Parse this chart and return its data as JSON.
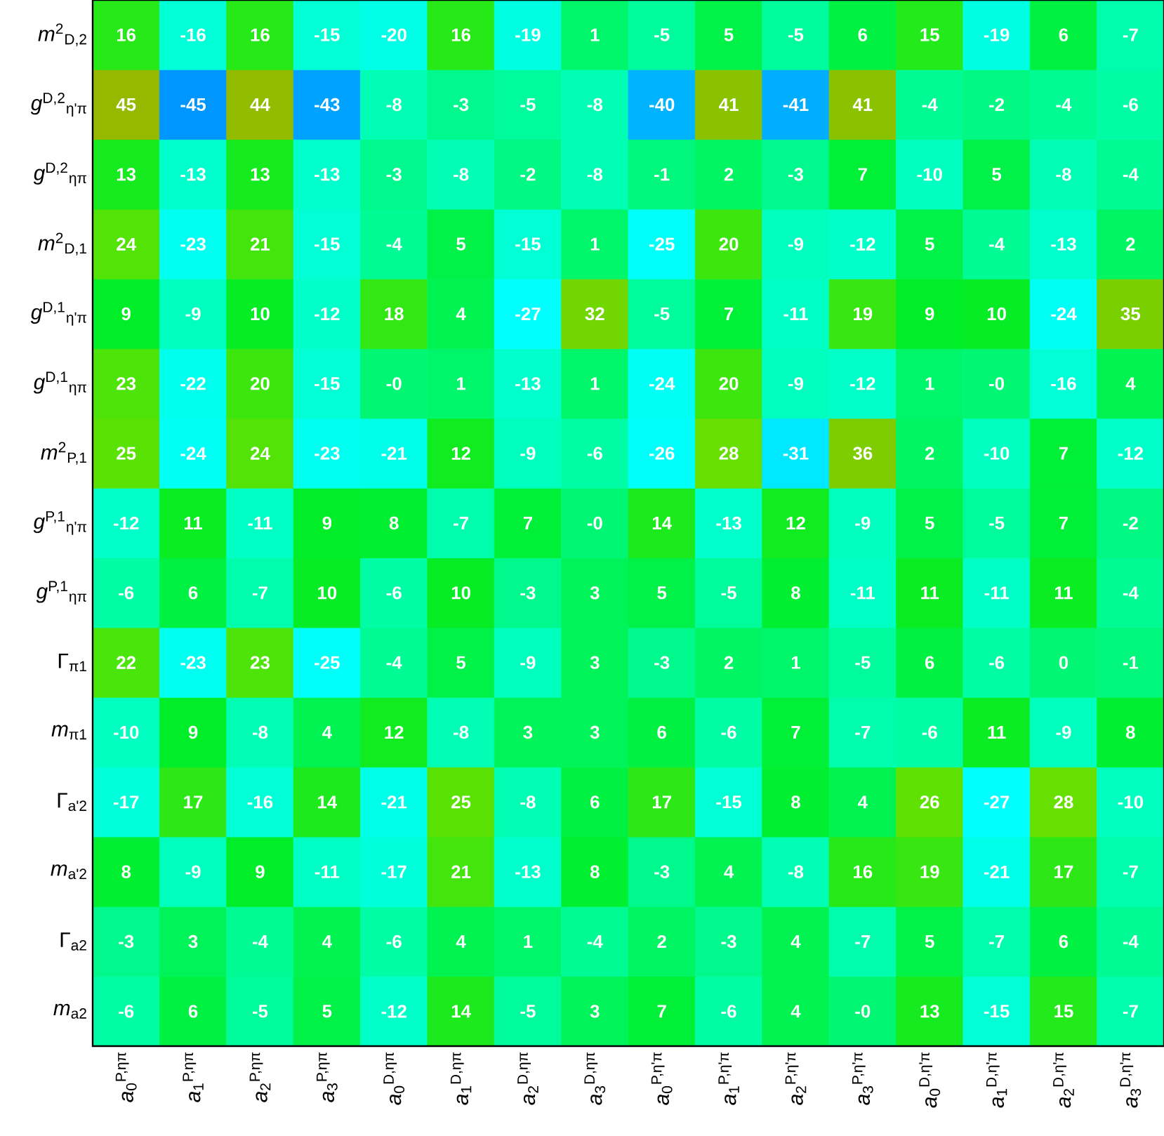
{
  "chart_data": {
    "type": "heatmap",
    "categories": [
      "*a*$_{0}$$^{P,ηπ}$",
      "*a*$_{1}$$^{P,ηπ}$",
      "*a*$_{2}$$^{P,ηπ}$",
      "*a*$_{3}$$^{P,ηπ}$",
      "*a*$_{0}$$^{D,ηπ}$",
      "*a*$_{1}$$^{D,ηπ}$",
      "*a*$_{2}$$^{D,ηπ}$",
      "*a*$_{3}$$^{D,ηπ}$",
      "*a*$_{0}$$^{P,η'π}$",
      "*a*$_{1}$$^{P,η'π}$",
      "*a*$_{2}$$^{P,η'π}$",
      "*a*$_{3}$$^{P,η'π}$",
      "*a*$_{0}$$^{D,η'π}$",
      "*a*$_{1}$$^{D,η'π}$",
      "*a*$_{2}$$^{D,η'π}$",
      "*a*$_{3}$$^{D,η'π}$"
    ],
    "y_categories": [
      "*m*$^{2}$$_{D,2}$",
      "*g*$^{D,2}$$_{η'π}$",
      "*g*$^{D,2}$$_{ηπ}$",
      "*m*$^{2}$$_{D,1}$",
      "*g*$^{D,1}$$_{η'π}$",
      "*g*$^{D,1}$$_{ηπ}$",
      "*m*$^{2}$$_{P,1}$",
      "*g*$^{P,1}$$_{η'π}$",
      "*g*$^{P,1}$$_{ηπ}$",
      "Γ$_{π1}$",
      "*m*$_{π1}$",
      "Γ$_{a'2}$",
      "*m*$_{a'2}$",
      "Γ$_{a2}$",
      "*m*$_{a2}$"
    ],
    "cells": [
      [
        16,
        -16,
        16,
        -15,
        -20,
        16,
        -19,
        1,
        -5,
        5,
        -5,
        6,
        15,
        -19,
        6,
        -7
      ],
      [
        45,
        -45,
        44,
        -43,
        -8,
        -3,
        -5,
        -8,
        -40,
        41,
        -41,
        41,
        -4,
        -2,
        -4,
        -6
      ],
      [
        13,
        -13,
        13,
        -13,
        -3,
        -8,
        -2,
        -8,
        -1,
        2,
        -3,
        7,
        -10,
        5,
        -8,
        -4
      ],
      [
        24,
        -23,
        21,
        -15,
        -4,
        5,
        -15,
        1,
        -25,
        20,
        -9,
        -12,
        5,
        -4,
        -13,
        2
      ],
      [
        9,
        -9,
        10,
        -12,
        18,
        4,
        -27,
        32,
        -5,
        7,
        -11,
        19,
        9,
        10,
        -24,
        35
      ],
      [
        23,
        -22,
        20,
        -15,
        0,
        1,
        -13,
        1,
        -24,
        20,
        -9,
        -12,
        1,
        0,
        -16,
        4
      ],
      [
        25,
        -24,
        24,
        -23,
        -21,
        12,
        -9,
        -6,
        -26,
        28,
        -31,
        36,
        2,
        -10,
        7,
        -12
      ],
      [
        -12,
        11,
        -11,
        9,
        8,
        -7,
        7,
        0,
        14,
        -13,
        12,
        -9,
        5,
        -5,
        7,
        -2
      ],
      [
        -6,
        6,
        -7,
        10,
        -6,
        10,
        -3,
        3,
        5,
        -5,
        8,
        -11,
        11,
        -11,
        11,
        -4
      ],
      [
        22,
        -23,
        23,
        -25,
        -4,
        5,
        -9,
        3,
        -3,
        2,
        1,
        -5,
        6,
        -6,
        0,
        -1
      ],
      [
        -10,
        9,
        -8,
        4,
        12,
        -8,
        3,
        3,
        6,
        -6,
        7,
        -7,
        -6,
        11,
        -9,
        8
      ],
      [
        -17,
        17,
        -16,
        14,
        -21,
        25,
        -8,
        6,
        17,
        -15,
        8,
        4,
        26,
        -27,
        28,
        -10
      ],
      [
        8,
        -9,
        9,
        -11,
        -17,
        21,
        -13,
        8,
        -3,
        4,
        -8,
        16,
        19,
        -21,
        17,
        -7
      ],
      [
        -3,
        3,
        -4,
        4,
        -6,
        4,
        1,
        -4,
        2,
        -3,
        4,
        -7,
        5,
        -7,
        6,
        -4
      ],
      [
        -6,
        6,
        -5,
        5,
        -12,
        14,
        -5,
        3,
        7,
        -6,
        4,
        0,
        13,
        -15,
        15,
        -7
      ]
    ],
    "cell_labels": [
      [
        "16",
        "-16",
        "16",
        "-15",
        "-20",
        "16",
        "-19",
        "1",
        "-5",
        "5",
        "-5",
        "6",
        "15",
        "-19",
        "6",
        "-7"
      ],
      [
        "45",
        "-45",
        "44",
        "-43",
        "-8",
        "-3",
        "-5",
        "-8",
        "-40",
        "41",
        "-41",
        "41",
        "-4",
        "-2",
        "-4",
        "-6"
      ],
      [
        "13",
        "-13",
        "13",
        "-13",
        "-3",
        "-8",
        "-2",
        "-8",
        "-1",
        "2",
        "-3",
        "7",
        "-10",
        "5",
        "-8",
        "-4"
      ],
      [
        "24",
        "-23",
        "21",
        "-15",
        "-4",
        "5",
        "-15",
        "1",
        "-25",
        "20",
        "-9",
        "-12",
        "5",
        "-4",
        "-13",
        "2"
      ],
      [
        "9",
        "-9",
        "10",
        "-12",
        "18",
        "4",
        "-27",
        "32",
        "-5",
        "7",
        "-11",
        "19",
        "9",
        "10",
        "-24",
        "35"
      ],
      [
        "23",
        "-22",
        "20",
        "-15",
        "-0",
        "1",
        "-13",
        "1",
        "-24",
        "20",
        "-9",
        "-12",
        "1",
        "-0",
        "-16",
        "4"
      ],
      [
        "25",
        "-24",
        "24",
        "-23",
        "-21",
        "12",
        "-9",
        "-6",
        "-26",
        "28",
        "-31",
        "36",
        "2",
        "-10",
        "7",
        "-12"
      ],
      [
        "-12",
        "11",
        "-11",
        "9",
        "8",
        "-7",
        "7",
        "-0",
        "14",
        "-13",
        "12",
        "-9",
        "5",
        "-5",
        "7",
        "-2"
      ],
      [
        "-6",
        "6",
        "-7",
        "10",
        "-6",
        "10",
        "-3",
        "3",
        "5",
        "-5",
        "8",
        "-11",
        "11",
        "-11",
        "11",
        "-4"
      ],
      [
        "22",
        "-23",
        "23",
        "-25",
        "-4",
        "5",
        "-9",
        "3",
        "-3",
        "2",
        "1",
        "-5",
        "6",
        "-6",
        "0",
        "-1"
      ],
      [
        "-10",
        "9",
        "-8",
        "4",
        "12",
        "-8",
        "3",
        "3",
        "6",
        "-6",
        "7",
        "-7",
        "-6",
        "11",
        "-9",
        "8"
      ],
      [
        "-17",
        "17",
        "-16",
        "14",
        "-21",
        "25",
        "-8",
        "6",
        "17",
        "-15",
        "8",
        "4",
        "26",
        "-27",
        "28",
        "-10"
      ],
      [
        "8",
        "-9",
        "9",
        "-11",
        "-17",
        "21",
        "-13",
        "8",
        "-3",
        "4",
        "-8",
        "16",
        "19",
        "-21",
        "17",
        "-7"
      ],
      [
        "-3",
        "3",
        "-4",
        "4",
        "-6",
        "4",
        "1",
        "-4",
        "2",
        "-3",
        "4",
        "-7",
        "5",
        "-7",
        "6",
        "-4"
      ],
      [
        "-6",
        "6",
        "-5",
        "5",
        "-12",
        "14",
        "-5",
        "3",
        "7",
        "-6",
        "4",
        "-0",
        "13",
        "-15",
        "15",
        "-7"
      ]
    ]
  }
}
